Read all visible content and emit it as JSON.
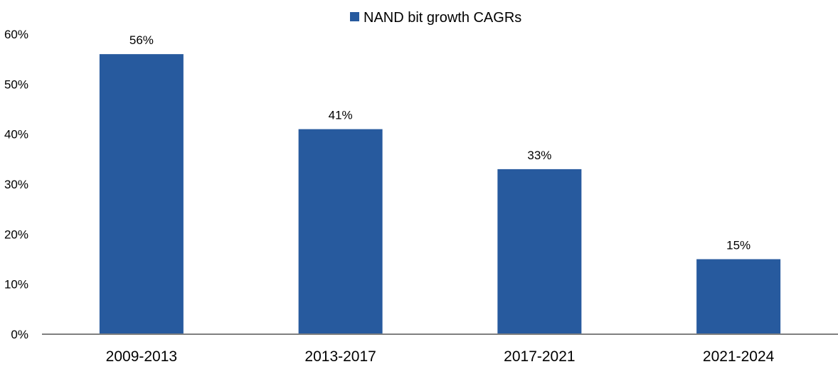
{
  "chart_data": {
    "type": "bar",
    "categories": [
      "2009-2013",
      "2013-2017",
      "2017-2021",
      "2021-2024"
    ],
    "series": [
      {
        "name": "NAND bit growth CAGRs",
        "values": [
          56,
          41,
          33,
          15
        ],
        "value_labels": [
          "56%",
          "41%",
          "33%",
          "15%"
        ],
        "color": "#275a9e"
      }
    ],
    "y_ticks": [
      "0%",
      "10%",
      "20%",
      "30%",
      "40%",
      "50%",
      "60%"
    ],
    "ylim": [
      0,
      60
    ],
    "legend_position": "top-center",
    "grid": false,
    "axis_color": "#7f7f7f",
    "text_color": "#000000"
  }
}
